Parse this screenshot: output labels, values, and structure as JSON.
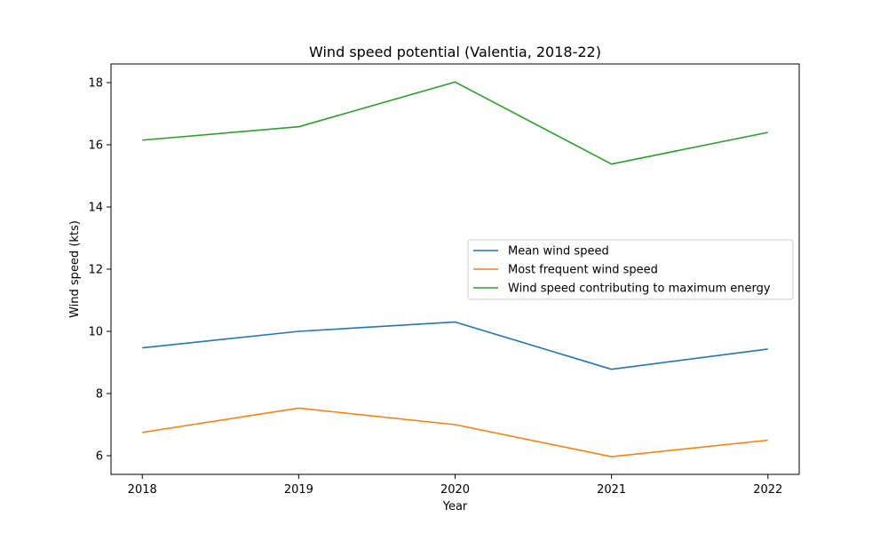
{
  "chart_data": {
    "type": "line",
    "title": "Wind speed potential (Valentia, 2018-22)",
    "xlabel": "Year",
    "ylabel": "Wind speed (kts)",
    "x": [
      2018,
      2019,
      2020,
      2021,
      2022
    ],
    "x_tick_labels": [
      "2018",
      "2019",
      "2020",
      "2021",
      "2022"
    ],
    "y_ticks": [
      6,
      8,
      10,
      12,
      14,
      16,
      18
    ],
    "y_tick_labels": [
      "6",
      "8",
      "10",
      "12",
      "14",
      "16",
      "18"
    ],
    "xlim": [
      2017.8,
      2022.2
    ],
    "ylim": [
      5.4,
      18.6
    ],
    "grid": false,
    "legend_position": "center-right",
    "series": [
      {
        "name": "Mean wind speed",
        "color": "#1f77b4",
        "values": [
          9.47,
          10.0,
          10.3,
          8.78,
          9.43
        ]
      },
      {
        "name": "Most frequent wind speed",
        "color": "#ff7f0e",
        "values": [
          6.75,
          7.53,
          7.0,
          5.97,
          6.5
        ]
      },
      {
        "name": "Wind speed contributing to maximum energy",
        "color": "#2ca02c",
        "values": [
          16.15,
          16.58,
          18.02,
          15.38,
          16.4
        ]
      }
    ]
  }
}
